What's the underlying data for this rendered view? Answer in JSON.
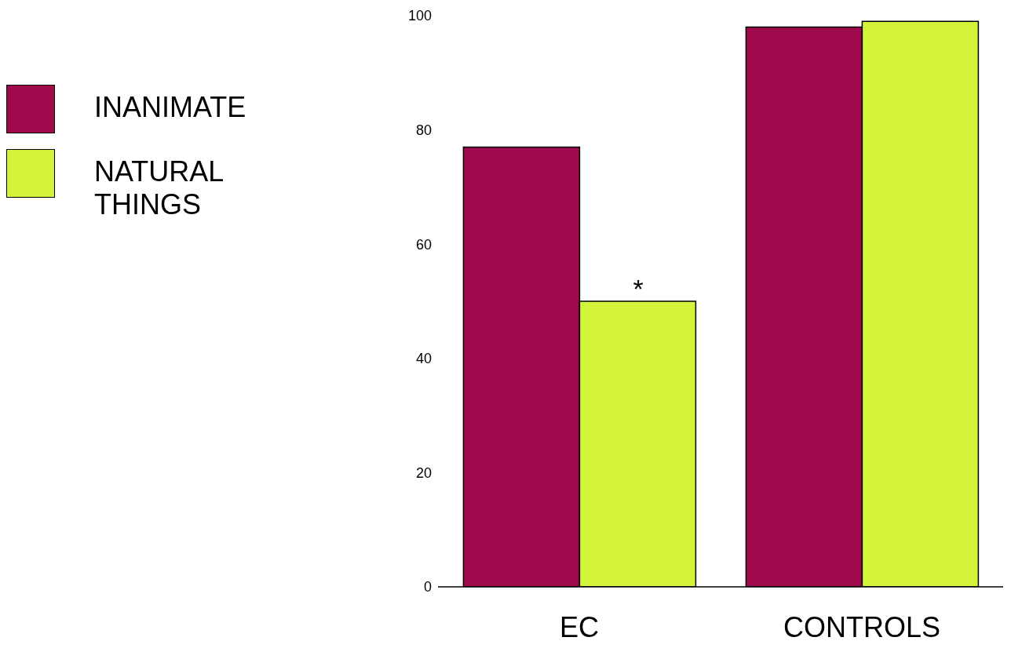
{
  "chart_data": {
    "type": "bar",
    "categories": [
      "EC",
      "CONTROLS"
    ],
    "series": [
      {
        "name": "INANIMATE",
        "color": "#9e0a4c",
        "values": [
          77,
          98
        ]
      },
      {
        "name": "NATURAL THINGS",
        "color": "#d4f43c",
        "values": [
          50,
          99
        ]
      }
    ],
    "ylim": [
      0,
      100
    ],
    "yticks": [
      0,
      20,
      40,
      60,
      80,
      100
    ],
    "grid": false,
    "legend": "left",
    "annotations": [
      {
        "text": "*",
        "x": "EC",
        "y": 50
      }
    ]
  }
}
